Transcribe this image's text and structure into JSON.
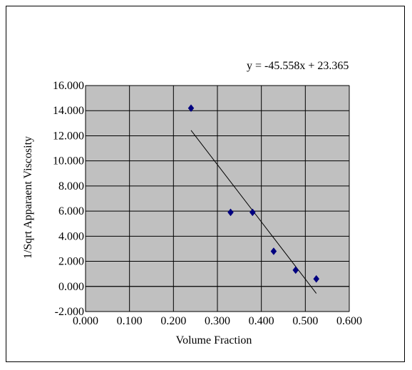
{
  "chart_data": {
    "type": "scatter",
    "title": "",
    "xlabel": "Volume Fraction",
    "ylabel": "1/Sqrt Apparaent Viscosity",
    "xlim": [
      0.0,
      0.6
    ],
    "ylim": [
      -2.0,
      16.0
    ],
    "x_ticks": [
      "0.000",
      "0.100",
      "0.200",
      "0.300",
      "0.400",
      "0.500",
      "0.600"
    ],
    "y_ticks": [
      "-2.000",
      "0.000",
      "2.000",
      "4.000",
      "6.000",
      "8.000",
      "10.000",
      "12.000",
      "14.000",
      "16.000"
    ],
    "grid": true,
    "plot_background": "#c0c0c0",
    "marker_color": "#000080",
    "marker": "diamond",
    "series": [
      {
        "x": [
          0.24,
          0.33,
          0.38,
          0.428,
          0.478,
          0.525
        ],
        "y": [
          14.2,
          5.9,
          5.9,
          2.8,
          1.3,
          0.6
        ]
      }
    ],
    "trendline": {
      "equation": "y = -45.558x + 23.365",
      "slope": -45.558,
      "intercept": 23.365,
      "x_range": [
        0.24,
        0.525
      ],
      "color": "#000000"
    }
  }
}
